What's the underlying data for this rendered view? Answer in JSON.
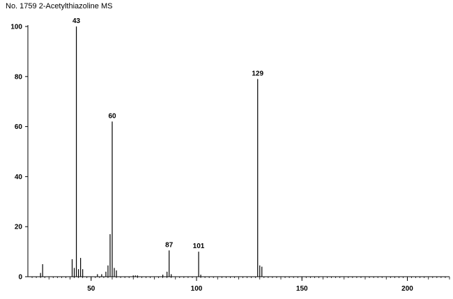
{
  "chart_data": {
    "type": "bar",
    "title": "No. 1759 2-Acetylthiazoline MS",
    "xlabel": "",
    "ylabel": "",
    "xlim": [
      20,
      220
    ],
    "ylim": [
      0,
      100
    ],
    "x_ticks": [
      50,
      100,
      150,
      200
    ],
    "y_ticks": [
      0,
      20,
      40,
      60,
      80,
      100
    ],
    "grid": false,
    "legend": "none",
    "color": "#000000",
    "peaks": [
      {
        "mz": 26,
        "intensity": 1.5
      },
      {
        "mz": 27,
        "intensity": 5
      },
      {
        "mz": 41,
        "intensity": 7
      },
      {
        "mz": 42,
        "intensity": 3.5
      },
      {
        "mz": 43,
        "intensity": 100
      },
      {
        "mz": 44,
        "intensity": 3
      },
      {
        "mz": 45,
        "intensity": 7.5
      },
      {
        "mz": 46,
        "intensity": 3
      },
      {
        "mz": 53,
        "intensity": 1
      },
      {
        "mz": 55,
        "intensity": 1
      },
      {
        "mz": 57,
        "intensity": 2
      },
      {
        "mz": 58,
        "intensity": 4.5
      },
      {
        "mz": 59,
        "intensity": 17
      },
      {
        "mz": 60,
        "intensity": 62
      },
      {
        "mz": 61,
        "intensity": 3.5
      },
      {
        "mz": 62,
        "intensity": 2.5
      },
      {
        "mz": 70,
        "intensity": 0.5
      },
      {
        "mz": 71,
        "intensity": 0.5
      },
      {
        "mz": 72,
        "intensity": 0.5
      },
      {
        "mz": 84,
        "intensity": 0.8
      },
      {
        "mz": 86,
        "intensity": 2
      },
      {
        "mz": 87,
        "intensity": 10.5
      },
      {
        "mz": 88,
        "intensity": 1
      },
      {
        "mz": 101,
        "intensity": 10
      },
      {
        "mz": 102,
        "intensity": 0.8
      },
      {
        "mz": 129,
        "intensity": 79
      },
      {
        "mz": 130,
        "intensity": 4.5
      },
      {
        "mz": 131,
        "intensity": 4
      }
    ],
    "annotations": [
      {
        "mz": 43,
        "text": "43"
      },
      {
        "mz": 60,
        "text": "60"
      },
      {
        "mz": 87,
        "text": "87"
      },
      {
        "mz": 101,
        "text": "101"
      },
      {
        "mz": 129,
        "text": "129"
      }
    ]
  }
}
